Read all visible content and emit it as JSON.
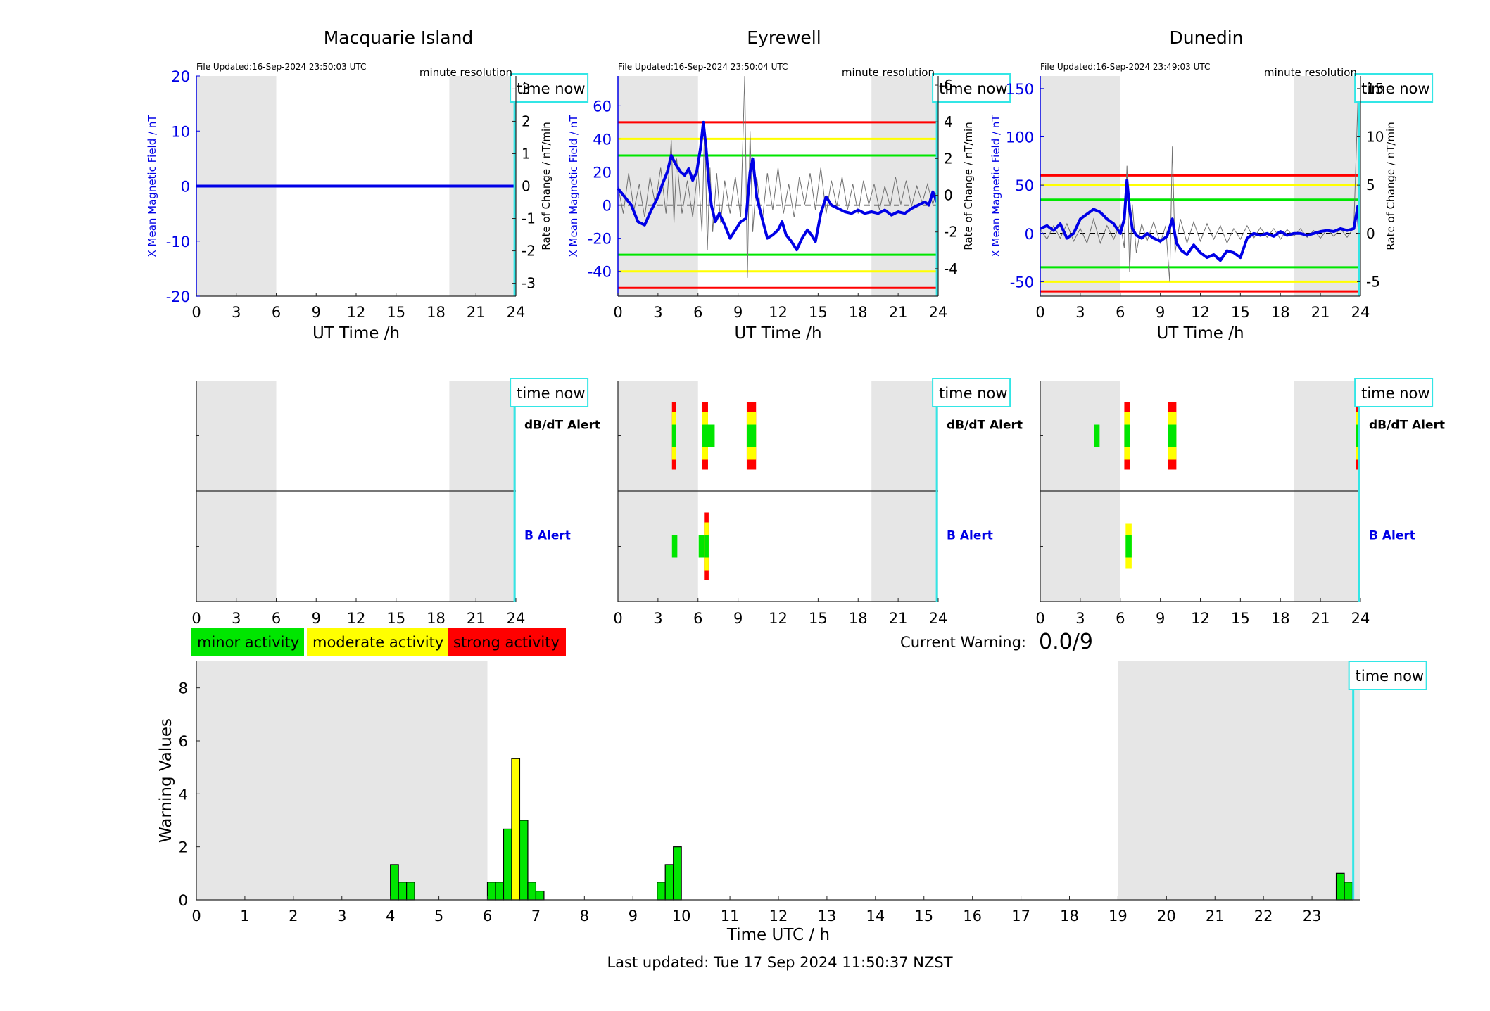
{
  "colors": {
    "night_shading": "#e6e6e6",
    "field_line": "#0000e6",
    "rate_line": "#707070",
    "minor": "#00e600",
    "moderate": "#ffff00",
    "strong": "#ff0000",
    "time_now": "#33e6e6",
    "axis_blue": "#0000e6"
  },
  "chart_data": [
    {
      "type": "line",
      "title": "Macquarie Island",
      "file_updated": "File Updated:16-Sep-2024 23:50:03 UTC",
      "resolution_label": "minute resolution",
      "time_now_label": "time now",
      "xlabel": "UT Time /h",
      "ylabel_left": "X Mean Magnetic Field / nT",
      "ylabel_right": "Rate of Change / nT/min",
      "xlim": [
        0,
        24
      ],
      "ylim_left": [
        -20,
        20
      ],
      "ylim_right": [
        -3.4,
        3.4
      ],
      "xticks": [
        0,
        3,
        6,
        9,
        12,
        15,
        18,
        21,
        24
      ],
      "yticks_left": [
        -20,
        -10,
        0,
        10,
        20
      ],
      "yticks_right": [
        -3,
        -2,
        -1,
        0,
        1,
        2,
        3
      ],
      "night_bands": [
        [
          0,
          6
        ],
        [
          19,
          24
        ]
      ],
      "time_now": 23.9,
      "thresholds": [],
      "field_series": {
        "x": [
          0,
          24
        ],
        "y": [
          0,
          0
        ]
      },
      "rate_series": {
        "x": [],
        "y": []
      }
    },
    {
      "type": "line",
      "title": "Eyrewell",
      "file_updated": "File Updated:16-Sep-2024 23:50:04 UTC",
      "resolution_label": "minute resolution",
      "time_now_label": "time now",
      "xlabel": "UT Time /h",
      "ylabel_left": "X Mean Magnetic Field / nT",
      "ylabel_right": "Rate of Change / nT/min",
      "xlim": [
        0,
        24
      ],
      "ylim_left": [
        -55,
        78
      ],
      "ylim_right": [
        -5.5,
        6.5
      ],
      "xticks": [
        0,
        3,
        6,
        9,
        12,
        15,
        18,
        21,
        24
      ],
      "yticks_left": [
        -40,
        -20,
        0,
        20,
        40,
        60
      ],
      "yticks_right": [
        -4,
        -2,
        0,
        2,
        4,
        6
      ],
      "night_bands": [
        [
          0,
          6
        ],
        [
          19,
          24
        ]
      ],
      "time_now": 23.9,
      "thresholds": [
        {
          "value": 50,
          "level": "strong"
        },
        {
          "value": -50,
          "level": "strong"
        },
        {
          "value": 40,
          "level": "moderate"
        },
        {
          "value": -40,
          "level": "moderate"
        },
        {
          "value": 30,
          "level": "minor"
        },
        {
          "value": -30,
          "level": "minor"
        }
      ],
      "field_series": {
        "x": [
          0,
          0.5,
          1,
          1.5,
          2,
          2.5,
          3,
          3.3,
          3.7,
          4,
          4.3,
          4.7,
          5,
          5.3,
          5.6,
          5.9,
          6.2,
          6.4,
          6.6,
          6.8,
          7,
          7.3,
          7.6,
          8,
          8.4,
          8.8,
          9.2,
          9.6,
          9.9,
          10.1,
          10.4,
          10.8,
          11.2,
          11.6,
          12,
          12.3,
          12.6,
          13,
          13.4,
          13.8,
          14.2,
          14.5,
          14.8,
          15.2,
          15.6,
          16,
          16.5,
          17,
          17.5,
          18,
          18.5,
          19,
          19.5,
          20,
          20.5,
          21,
          21.5,
          22,
          22.5,
          23,
          23.3,
          23.6,
          23.9
        ],
        "y": [
          10,
          5,
          0,
          -10,
          -12,
          -3,
          5,
          12,
          20,
          30,
          25,
          20,
          18,
          22,
          15,
          20,
          35,
          50,
          35,
          15,
          0,
          -10,
          -5,
          -12,
          -20,
          -15,
          -10,
          -8,
          20,
          28,
          5,
          -8,
          -20,
          -18,
          -15,
          -10,
          -18,
          -22,
          -27,
          -20,
          -15,
          -18,
          -22,
          -5,
          5,
          0,
          -2,
          -4,
          -5,
          -3,
          -5,
          -4,
          -5,
          -3,
          -6,
          -4,
          -5,
          -2,
          0,
          2,
          0,
          8,
          2
        ]
      },
      "rate_series": {
        "x": [
          0,
          0.4,
          0.8,
          1.2,
          1.6,
          2,
          2.4,
          2.8,
          3.2,
          3.6,
          4,
          4.2,
          4.4,
          4.8,
          5.2,
          5.6,
          6,
          6.3,
          6.5,
          6.7,
          6.9,
          7.1,
          7.4,
          7.7,
          8,
          8.4,
          8.8,
          9.2,
          9.5,
          9.7,
          9.9,
          10.1,
          10.4,
          10.8,
          11.2,
          11.6,
          12,
          12.4,
          12.8,
          13.2,
          13.6,
          14,
          14.4,
          14.8,
          15.2,
          15.6,
          16,
          16.4,
          16.8,
          17.2,
          17.6,
          18,
          18.4,
          18.8,
          19.2,
          19.6,
          20,
          20.4,
          20.8,
          21.2,
          21.6,
          22,
          22.4,
          22.8,
          23.2,
          23.6,
          23.9
        ],
        "y": [
          0.5,
          -1,
          1.2,
          -0.8,
          0.6,
          -1.2,
          1,
          -0.5,
          1.5,
          -1,
          3,
          -1.5,
          2,
          -1,
          0.8,
          -1.2,
          1.5,
          -2,
          4,
          -3,
          1.5,
          -2,
          1.2,
          -1.5,
          0.8,
          -1,
          1,
          -1.2,
          6.5,
          -4.5,
          3.5,
          -2,
          1,
          -1.5,
          1.2,
          -0.8,
          1.5,
          -1,
          0.6,
          -1.2,
          1,
          -0.5,
          1.2,
          -0.8,
          1.5,
          -1,
          0.8,
          -0.6,
          1,
          -0.8,
          0.6,
          -1,
          0.8,
          -0.5,
          0.6,
          -0.8,
          0.5,
          -0.6,
          1,
          -0.5,
          0.8,
          -0.6,
          0.5,
          -0.4,
          0.6,
          -0.5,
          0.3
        ]
      }
    },
    {
      "type": "line",
      "title": "Dunedin",
      "file_updated": "File Updated:16-Sep-2024 23:49:03 UTC",
      "resolution_label": "minute resolution",
      "time_now_label": "time now",
      "xlabel": "UT Time /h",
      "ylabel_left": "X Mean Magnetic Field / nT",
      "ylabel_right": "Rate of Change / nT/min",
      "xlim": [
        0,
        24
      ],
      "ylim_left": [
        -65,
        163
      ],
      "ylim_right": [
        -6.5,
        16.3
      ],
      "xticks": [
        0,
        3,
        6,
        9,
        12,
        15,
        18,
        21,
        24
      ],
      "yticks_left": [
        -50,
        0,
        50,
        100,
        150
      ],
      "yticks_right": [
        -5,
        0,
        5,
        10,
        15
      ],
      "night_bands": [
        [
          0,
          6
        ],
        [
          19,
          24
        ]
      ],
      "time_now": 23.9,
      "thresholds": [
        {
          "value": 60,
          "level": "strong"
        },
        {
          "value": -60,
          "level": "strong"
        },
        {
          "value": 50,
          "level": "moderate"
        },
        {
          "value": -50,
          "level": "moderate"
        },
        {
          "value": 35,
          "level": "minor"
        },
        {
          "value": -35,
          "level": "minor"
        }
      ],
      "field_series": {
        "x": [
          0,
          0.5,
          1,
          1.5,
          2,
          2.5,
          3,
          3.5,
          4,
          4.5,
          5,
          5.5,
          6,
          6.3,
          6.5,
          6.7,
          6.9,
          7.2,
          7.6,
          8,
          8.5,
          9,
          9.5,
          9.9,
          10.2,
          10.6,
          11,
          11.5,
          12,
          12.5,
          13,
          13.5,
          14,
          14.5,
          15,
          15.5,
          16,
          16.5,
          17,
          17.5,
          18,
          18.5,
          19,
          19.5,
          20,
          20.5,
          21,
          21.5,
          22,
          22.5,
          23,
          23.5,
          23.8,
          23.9
        ],
        "y": [
          5,
          8,
          3,
          10,
          -5,
          0,
          15,
          20,
          25,
          22,
          15,
          10,
          0,
          15,
          55,
          25,
          5,
          -2,
          -5,
          0,
          -5,
          -8,
          -3,
          15,
          -10,
          -18,
          -22,
          -12,
          -20,
          -25,
          -22,
          -28,
          -18,
          -20,
          -25,
          -5,
          0,
          -2,
          0,
          -3,
          2,
          -2,
          0,
          0,
          -2,
          0,
          2,
          3,
          2,
          5,
          3,
          5,
          28,
          5
        ]
      },
      "rate_series": {
        "x": [
          0,
          0.5,
          1,
          1.5,
          2,
          2.5,
          3,
          3.5,
          4,
          4.5,
          5,
          5.5,
          6,
          6.3,
          6.5,
          6.7,
          6.9,
          7.2,
          7.6,
          8,
          8.5,
          9,
          9.4,
          9.7,
          9.9,
          10.1,
          10.5,
          11,
          11.5,
          12,
          12.5,
          13,
          13.5,
          14,
          14.5,
          15,
          15.5,
          16,
          16.5,
          17,
          17.5,
          18,
          18.5,
          19,
          19.5,
          20,
          20.5,
          21,
          21.5,
          22,
          22.5,
          23,
          23.5,
          23.8,
          23.9
        ],
        "y": [
          0.4,
          -0.6,
          0.8,
          -0.5,
          1,
          -0.8,
          0.5,
          -1,
          1.5,
          -1,
          0.8,
          -0.6,
          1,
          -1.5,
          7,
          -4,
          3,
          -2,
          1,
          -0.8,
          1.2,
          -1,
          0.8,
          -5,
          9,
          -2,
          1.5,
          -1,
          1.2,
          -0.8,
          1,
          -0.6,
          0.8,
          -1,
          0.5,
          -0.6,
          0.8,
          -0.5,
          0.6,
          -0.4,
          0.5,
          -0.6,
          0.4,
          -0.3,
          0.5,
          -0.4,
          0.3,
          -0.5,
          0.4,
          -0.3,
          0.5,
          -0.4,
          0.6,
          13.5,
          -3
        ]
      }
    },
    {
      "type": "heatmap",
      "title": "",
      "time_now_label": "time now",
      "row_labels": [
        "dB/dT Alert",
        "B Alert"
      ],
      "xlim": [
        0,
        24
      ],
      "xticks": [
        0,
        3,
        6,
        9,
        12,
        15,
        18,
        21,
        24
      ],
      "night_bands": [
        [
          0,
          6
        ],
        [
          19,
          24
        ]
      ],
      "time_now": 23.9,
      "dbdt_alerts": [],
      "b_alerts": []
    },
    {
      "type": "heatmap",
      "title": "",
      "time_now_label": "time now",
      "row_labels": [
        "dB/dT Alert",
        "B Alert"
      ],
      "xlim": [
        0,
        24
      ],
      "xticks": [
        0,
        3,
        6,
        9,
        12,
        15,
        18,
        21,
        24
      ],
      "night_bands": [
        [
          0,
          6
        ],
        [
          19,
          24
        ]
      ],
      "time_now": 23.9,
      "dbdt_alerts": [
        {
          "start": 4.05,
          "end": 4.35,
          "level": "strong"
        },
        {
          "start": 6.3,
          "end": 6.75,
          "level": "strong"
        },
        {
          "start": 6.45,
          "end": 7.25,
          "level": "minor"
        },
        {
          "start": 9.65,
          "end": 10.35,
          "level": "strong"
        }
      ],
      "b_alerts": [
        {
          "start": 4.05,
          "end": 4.45,
          "level": "minor"
        },
        {
          "start": 6.05,
          "end": 6.75,
          "level": "minor"
        },
        {
          "start": 6.45,
          "end": 6.8,
          "level": "strong"
        }
      ]
    },
    {
      "type": "heatmap",
      "title": "",
      "time_now_label": "time now",
      "row_labels": [
        "dB/dT Alert",
        "B Alert"
      ],
      "xlim": [
        0,
        24
      ],
      "xticks": [
        0,
        3,
        6,
        9,
        12,
        15,
        18,
        21,
        24
      ],
      "night_bands": [
        [
          0,
          6
        ],
        [
          19,
          24
        ]
      ],
      "time_now": 23.9,
      "dbdt_alerts": [
        {
          "start": 4.05,
          "end": 4.45,
          "level": "minor"
        },
        {
          "start": 6.3,
          "end": 6.75,
          "level": "strong"
        },
        {
          "start": 9.55,
          "end": 10.2,
          "level": "strong"
        },
        {
          "start": 23.65,
          "end": 24,
          "level": "strong"
        }
      ],
      "b_alerts": [
        {
          "start": 6.4,
          "end": 6.85,
          "level": "moderate"
        }
      ]
    },
    {
      "type": "bar",
      "title": "",
      "xlabel": "Time UTC / h",
      "ylabel": "Warning Values",
      "xlim": [
        0,
        24
      ],
      "ylim": [
        0,
        9
      ],
      "xticks": [
        0,
        1,
        2,
        3,
        4,
        5,
        6,
        7,
        8,
        9,
        10,
        11,
        12,
        13,
        14,
        15,
        16,
        17,
        18,
        19,
        20,
        21,
        22,
        23
      ],
      "yticks": [
        0,
        2,
        4,
        6,
        8
      ],
      "night_bands": [
        [
          0,
          6
        ],
        [
          19,
          24
        ]
      ],
      "time_now": 23.85,
      "time_now_label": "time now",
      "bar_width": 0.1667,
      "bars": [
        {
          "x": 4.0,
          "value": 1.33,
          "level": "minor"
        },
        {
          "x": 4.1667,
          "value": 0.67,
          "level": "minor"
        },
        {
          "x": 4.3333,
          "value": 0.67,
          "level": "minor"
        },
        {
          "x": 6.0,
          "value": 0.67,
          "level": "minor"
        },
        {
          "x": 6.1667,
          "value": 0.67,
          "level": "minor"
        },
        {
          "x": 6.3333,
          "value": 2.67,
          "level": "minor"
        },
        {
          "x": 6.5,
          "value": 5.33,
          "level": "moderate"
        },
        {
          "x": 6.6667,
          "value": 3.0,
          "level": "minor"
        },
        {
          "x": 6.8333,
          "value": 0.67,
          "level": "minor"
        },
        {
          "x": 7.0,
          "value": 0.33,
          "level": "minor"
        },
        {
          "x": 9.5,
          "value": 0.67,
          "level": "minor"
        },
        {
          "x": 9.6667,
          "value": 1.33,
          "level": "minor"
        },
        {
          "x": 9.8333,
          "value": 2.0,
          "level": "minor"
        },
        {
          "x": 23.5,
          "value": 1.0,
          "level": "minor"
        },
        {
          "x": 23.6667,
          "value": 0.67,
          "level": "minor"
        }
      ]
    }
  ],
  "legend": [
    {
      "label": "minor activity",
      "level": "minor"
    },
    {
      "label": "moderate activity",
      "level": "moderate"
    },
    {
      "label": "strong activity",
      "level": "strong"
    }
  ],
  "current_warning": {
    "label": "Current Warning:",
    "value": "0.0/9"
  },
  "footer": {
    "last_updated": "Last updated: Tue 17 Sep 2024 11:50:37 NZST"
  }
}
